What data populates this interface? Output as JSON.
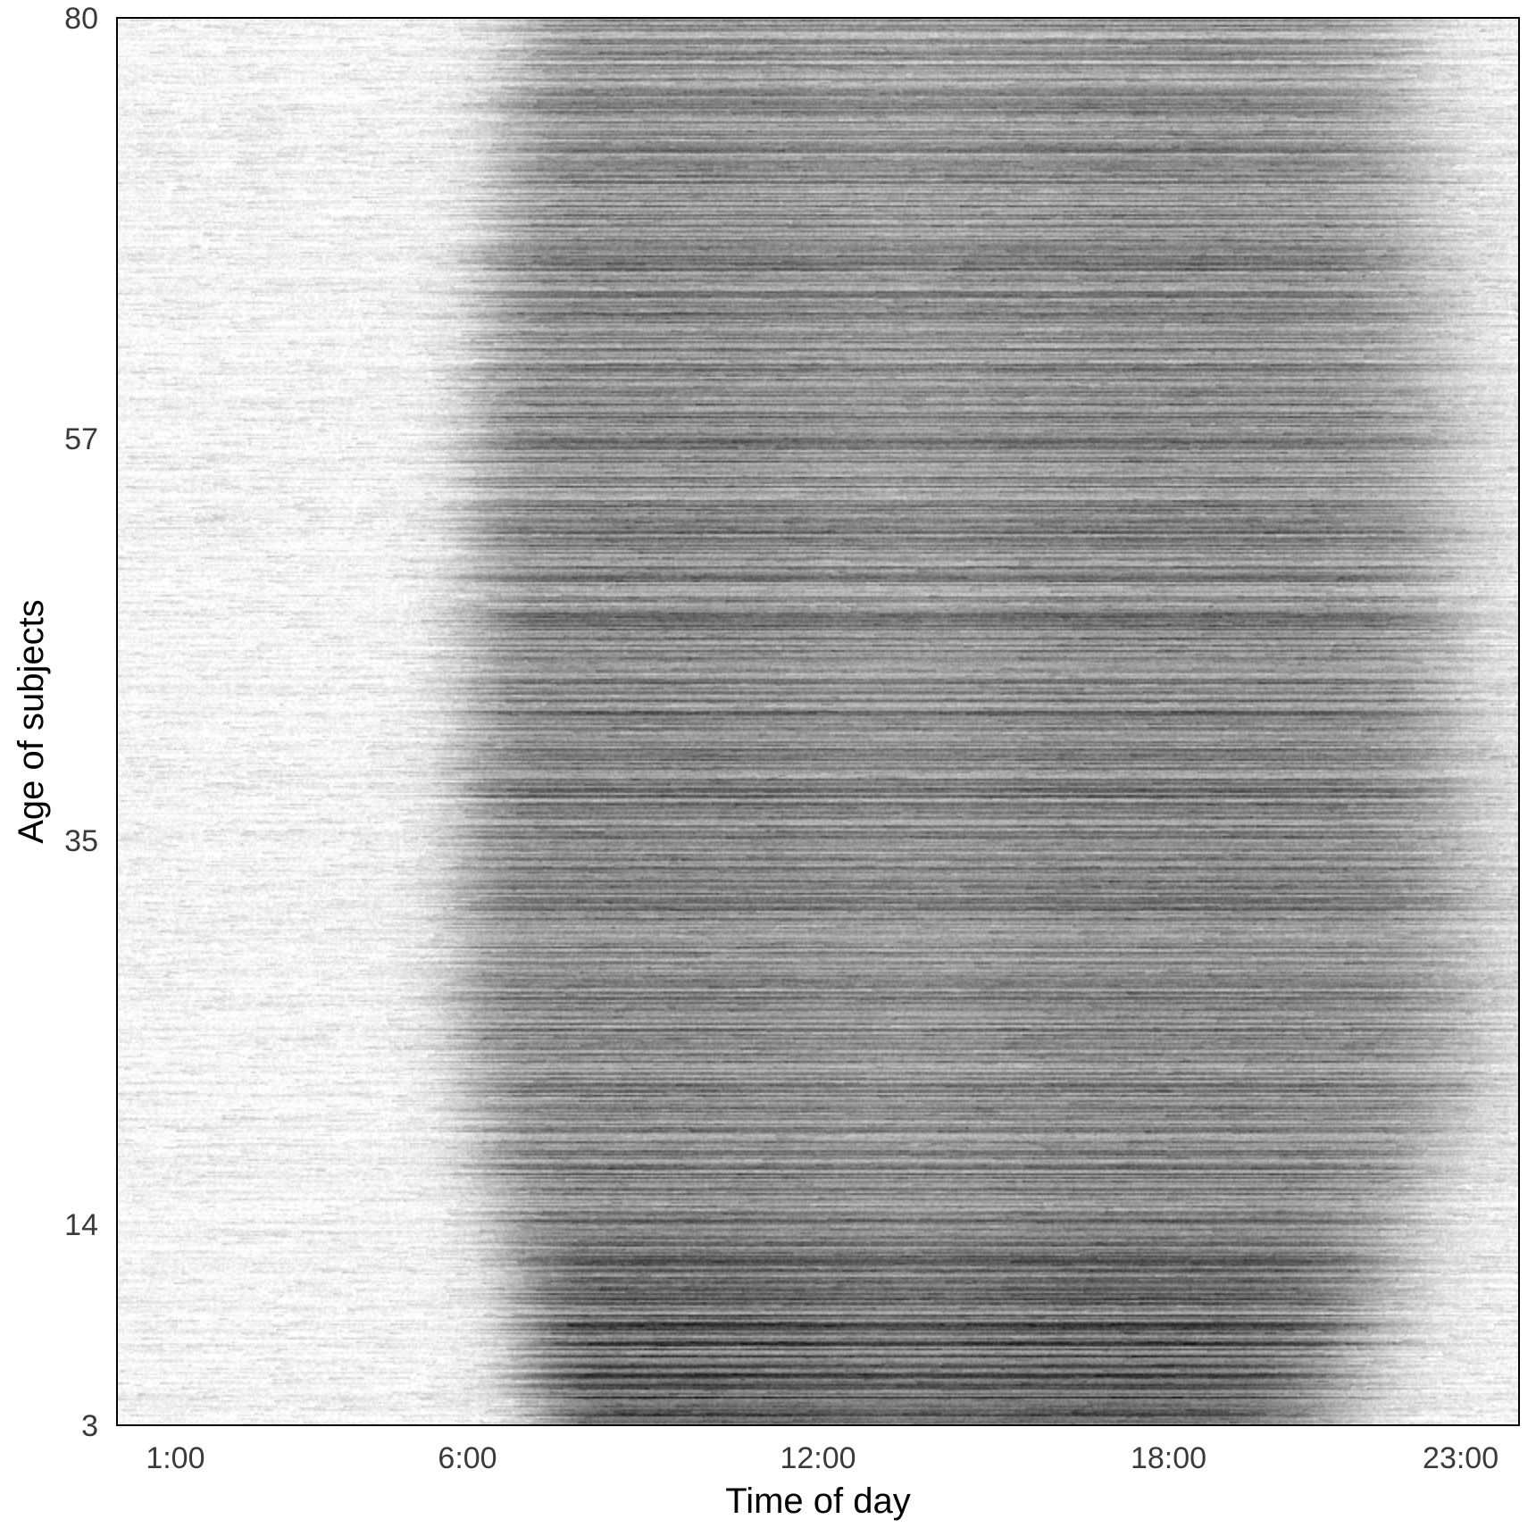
{
  "chart_data": {
    "type": "heatmap",
    "title": "",
    "xlabel": "Time of day",
    "ylabel": "Age of subjects",
    "x_ticks": [
      {
        "label": "1:00",
        "value": 1
      },
      {
        "label": "6:00",
        "value": 6
      },
      {
        "label": "12:00",
        "value": 12
      },
      {
        "label": "18:00",
        "value": 18
      },
      {
        "label": "23:00",
        "value": 23
      }
    ],
    "y_ticks": [
      {
        "label": "3",
        "value": 3
      },
      {
        "label": "14",
        "value": 14
      },
      {
        "label": "35",
        "value": 35
      },
      {
        "label": "57",
        "value": 57
      },
      {
        "label": "80",
        "value": 80
      }
    ],
    "xlim": [
      0,
      24
    ],
    "ylim": [
      3,
      80
    ],
    "grid": false,
    "legend": "none",
    "colormap": {
      "low": "#ffffff",
      "high": "#000000"
    },
    "activity_bands": [
      {
        "age": 3,
        "onset": 7.3,
        "offset": 20.6,
        "peak": 0.52
      },
      {
        "age": 5,
        "onset": 7.0,
        "offset": 21.0,
        "peak": 0.55
      },
      {
        "age": 8,
        "onset": 6.9,
        "offset": 21.4,
        "peak": 0.52
      },
      {
        "age": 11,
        "onset": 6.8,
        "offset": 21.6,
        "peak": 0.47
      },
      {
        "age": 14,
        "onset": 6.5,
        "offset": 22.0,
        "peak": 0.43
      },
      {
        "age": 18,
        "onset": 6.3,
        "offset": 22.7,
        "peak": 0.4
      },
      {
        "age": 22,
        "onset": 5.9,
        "offset": 23.2,
        "peak": 0.38
      },
      {
        "age": 28,
        "onset": 5.8,
        "offset": 23.3,
        "peak": 0.4
      },
      {
        "age": 35,
        "onset": 5.9,
        "offset": 23.1,
        "peak": 0.41
      },
      {
        "age": 45,
        "onset": 6.0,
        "offset": 22.9,
        "peak": 0.41
      },
      {
        "age": 57,
        "onset": 6.1,
        "offset": 22.8,
        "peak": 0.4
      },
      {
        "age": 68,
        "onset": 6.4,
        "offset": 22.4,
        "peak": 0.38
      },
      {
        "age": 80,
        "onset": 6.8,
        "offset": 22.0,
        "peak": 0.33
      }
    ]
  }
}
